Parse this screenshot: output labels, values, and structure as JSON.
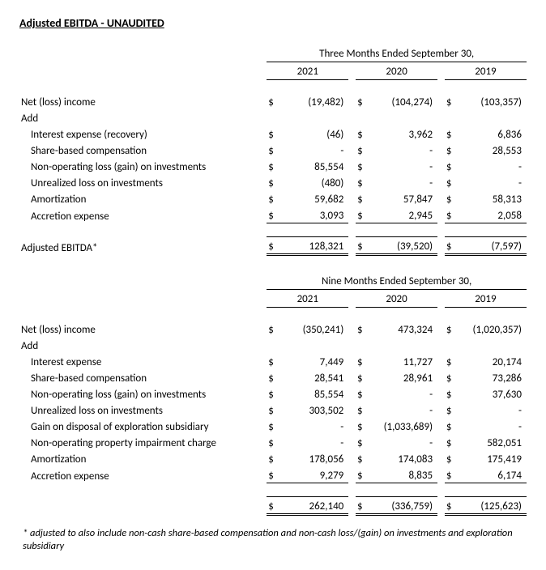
{
  "title": "Adjusted EBITDA - UNAUDITED",
  "footnote": "* adjusted to also include non-cash share-based compensation and non-cash loss/(gain) on investments and exploration subsidiary",
  "tables": [
    {
      "period_header": "Three Months Ended September 30,",
      "years": [
        "2021",
        "2020",
        "2019"
      ],
      "rows": [
        {
          "label": "Net (loss) income",
          "indent": 0,
          "vals": [
            "(19,482)",
            "(104,274)",
            "(103,357)"
          ],
          "cur": "$"
        },
        {
          "label": "Add",
          "indent": 0,
          "vals": null
        },
        {
          "label": "Interest expense (recovery)",
          "indent": 1,
          "vals": [
            "(46)",
            "3,962",
            "6,836"
          ],
          "cur": "$"
        },
        {
          "label": "Share-based compensation",
          "indent": 1,
          "vals": [
            "-",
            "-",
            "28,553"
          ],
          "cur": "$"
        },
        {
          "label": "Non-operating loss (gain) on investments",
          "indent": 1,
          "vals": [
            "85,554",
            "-",
            "-"
          ],
          "cur": "$"
        },
        {
          "label": "Unrealized loss on investments",
          "indent": 1,
          "vals": [
            "(480)",
            "-",
            "-"
          ],
          "cur": "$"
        },
        {
          "label": "Amortization",
          "indent": 1,
          "vals": [
            "59,682",
            "57,847",
            "58,313"
          ],
          "cur": "$"
        },
        {
          "label": "Accretion expense",
          "indent": 1,
          "vals": [
            "3,093",
            "2,945",
            "2,058"
          ],
          "cur": "$",
          "underline": true
        }
      ],
      "total": {
        "label": "Adjusted EBITDA*",
        "vals": [
          "128,321",
          "(39,520)",
          "(7,597)"
        ],
        "cur": "$"
      }
    },
    {
      "period_header": "Nine Months Ended September 30,",
      "years": [
        "2021",
        "2020",
        "2019"
      ],
      "rows": [
        {
          "label": "Net (loss) income",
          "indent": 0,
          "vals": [
            "(350,241)",
            "473,324",
            "(1,020,357)"
          ],
          "cur": "$"
        },
        {
          "label": "Add",
          "indent": 0,
          "vals": null
        },
        {
          "label": "Interest expense",
          "indent": 1,
          "vals": [
            "7,449",
            "11,727",
            "20,174"
          ],
          "cur": "$"
        },
        {
          "label": "Share-based compensation",
          "indent": 1,
          "vals": [
            "28,541",
            "28,961",
            "73,286"
          ],
          "cur": "$"
        },
        {
          "label": "Non-operating loss (gain) on investments",
          "indent": 1,
          "vals": [
            "85,554",
            "-",
            "37,630"
          ],
          "cur": "$"
        },
        {
          "label": "Unrealized loss on investments",
          "indent": 1,
          "vals": [
            "303,502",
            "-",
            "-"
          ],
          "cur": "$"
        },
        {
          "label": "Gain on disposal of exploration subsidiary",
          "indent": 1,
          "vals": [
            "-",
            "(1,033,689)",
            "-"
          ],
          "cur": "$"
        },
        {
          "label": "Non-operating property impairment charge",
          "indent": 1,
          "vals": [
            "-",
            "-",
            "582,051"
          ],
          "cur": "$"
        },
        {
          "label": "Amortization",
          "indent": 1,
          "vals": [
            "178,056",
            "174,083",
            "175,419"
          ],
          "cur": "$"
        },
        {
          "label": "Accretion expense",
          "indent": 1,
          "vals": [
            "9,279",
            "8,835",
            "6,174"
          ],
          "cur": "$",
          "underline": true
        }
      ],
      "total": {
        "label": "",
        "vals": [
          "262,140",
          "(336,759)",
          "(125,623)"
        ],
        "cur": "$"
      }
    }
  ]
}
